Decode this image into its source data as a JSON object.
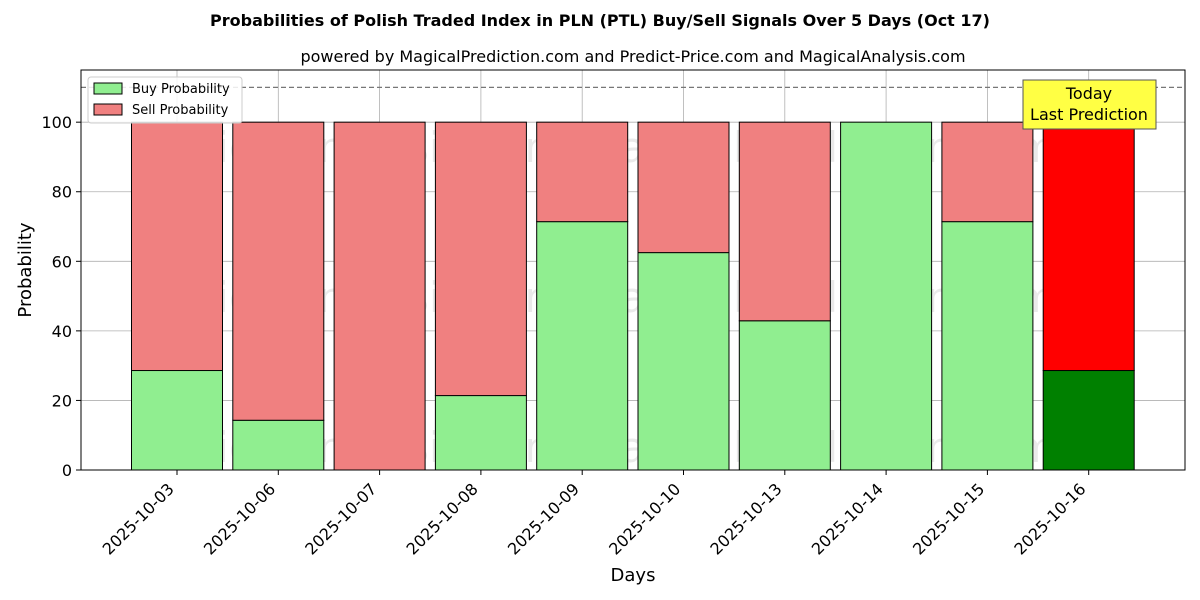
{
  "chart_data": {
    "type": "bar",
    "stacked": true,
    "title": "Probabilities of Polish Traded Index in PLN (PTL) Buy/Sell Signals Over 5 Days (Oct 17)",
    "subtitle": "powered by MagicalPrediction.com and Predict-Price.com and MagicalAnalysis.com",
    "xlabel": "Days",
    "ylabel": "Probability",
    "ylim": [
      0,
      115
    ],
    "yticks": [
      0,
      20,
      40,
      60,
      80,
      100
    ],
    "grid": true,
    "legend_position": "top-left",
    "reference_line": 110,
    "categories": [
      "2025-10-03",
      "2025-10-06",
      "2025-10-07",
      "2025-10-08",
      "2025-10-09",
      "2025-10-10",
      "2025-10-13",
      "2025-10-14",
      "2025-10-15",
      "2025-10-16"
    ],
    "series": [
      {
        "name": "Buy Probability",
        "color": "#90ee90",
        "values": [
          28.6,
          14.3,
          0,
          21.4,
          71.4,
          62.5,
          42.9,
          100,
          71.4,
          28.6
        ]
      },
      {
        "name": "Sell Probability",
        "color": "#f08080",
        "values": [
          71.4,
          85.7,
          100,
          78.6,
          28.6,
          37.5,
          57.1,
          0,
          28.6,
          71.4
        ]
      }
    ],
    "highlight": {
      "index": 9,
      "buy_color": "#008000",
      "sell_color": "#ff0000",
      "label_lines": [
        "Today",
        "Last Prediction"
      ],
      "label_bg": "#ffff44"
    },
    "watermarks": [
      "MagicalAnalysis.com",
      "MagicalPrediction.com"
    ]
  }
}
